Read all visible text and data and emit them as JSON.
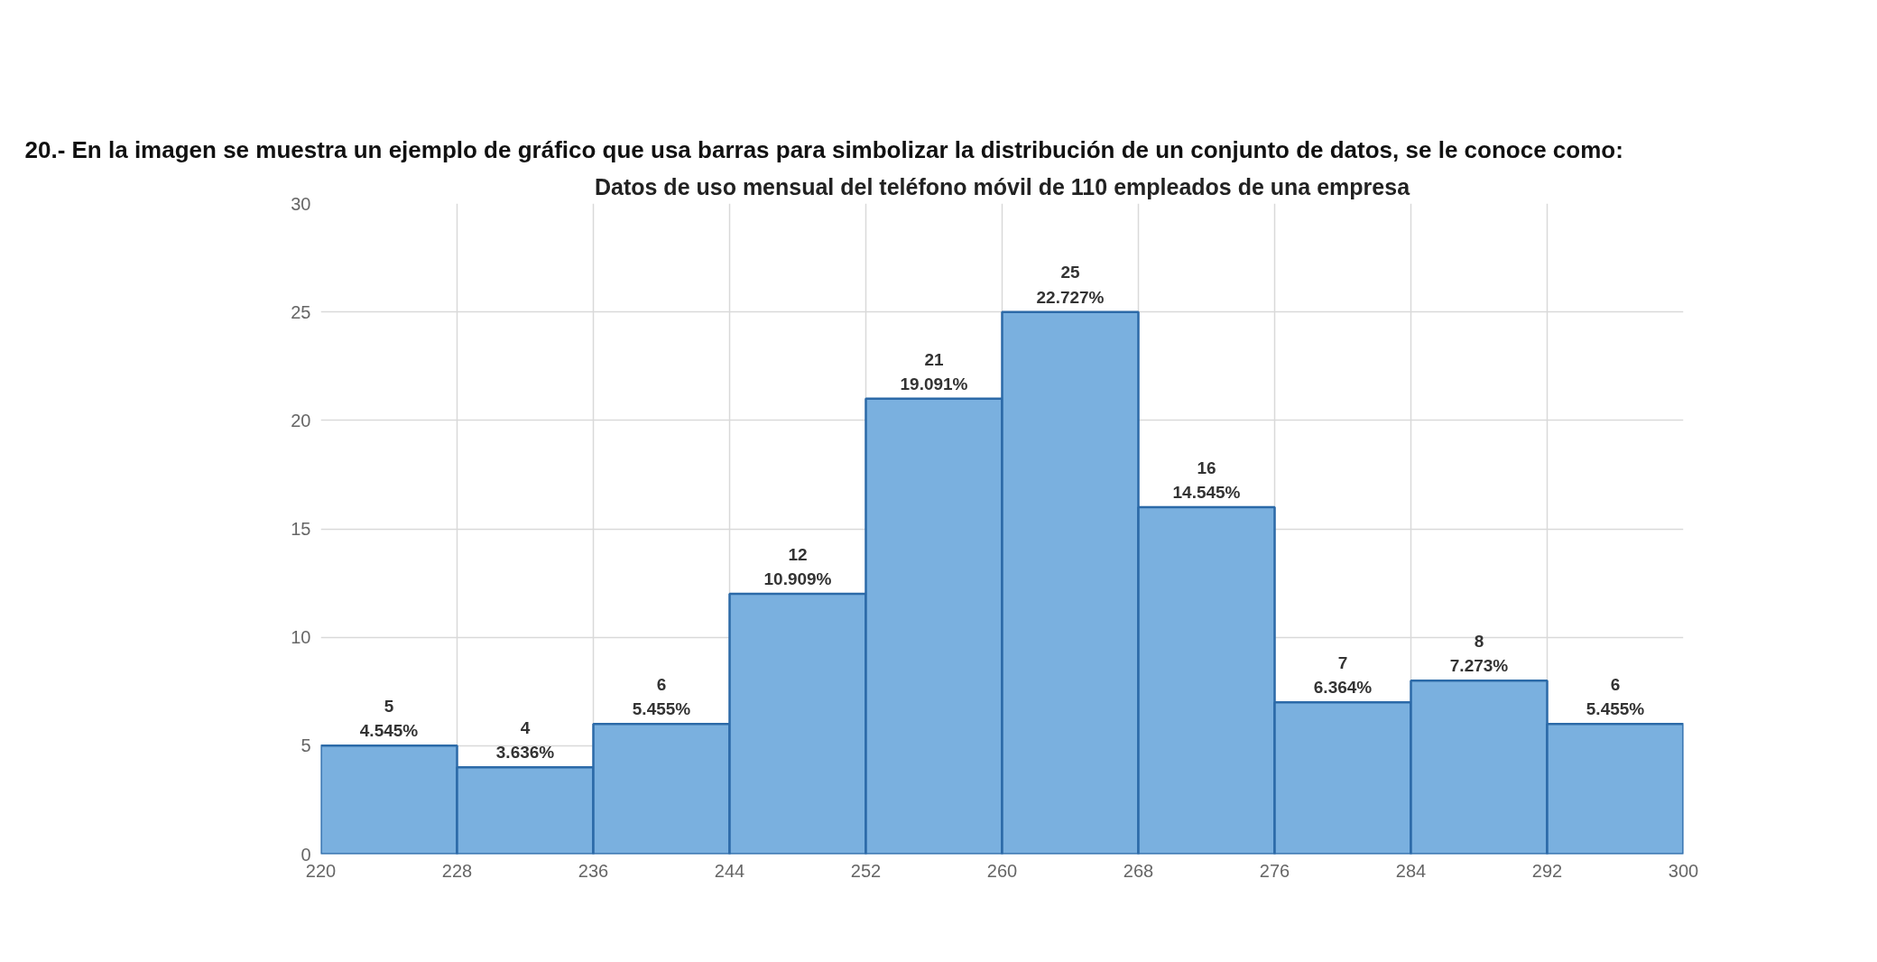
{
  "chart_data": {
    "type": "histogram",
    "title": "Datos de uso mensual del teléfono móvil de 110 empleados de una empresa",
    "annotations": [
      "20.- En la imagen se muestra un ejemplo de gráfico que usa barras para simbolizar la distribución de un conjunto de datos, se le conoce como:"
    ],
    "bins": [
      220,
      228,
      236,
      244,
      252,
      260,
      268,
      276,
      284,
      292,
      300
    ],
    "values": [
      5,
      4,
      6,
      12,
      21,
      25,
      16,
      7,
      8,
      6
    ],
    "value_labels": [
      "5\n4.545%",
      "4\n3.636%",
      "6\n5.455%",
      "12\n10.909%",
      "21\n19.091%",
      "25\n22.727%",
      "16\n14.545%",
      "7\n6.364%",
      "8\n7.273%",
      "6\n5.455%"
    ],
    "color": "#7ab0df",
    "xlim": [
      220,
      300
    ],
    "xticks": [
      220,
      228,
      236,
      244,
      252,
      260,
      268,
      276,
      284,
      292,
      300
    ],
    "ylim": [
      0,
      30
    ],
    "yticks": [
      0,
      5,
      10,
      15,
      20,
      25,
      30
    ],
    "grid": true
  }
}
